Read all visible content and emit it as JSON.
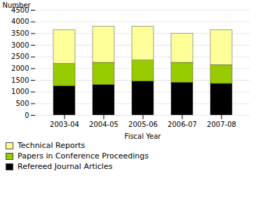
{
  "chart_data": {
    "type": "bar",
    "stacked": true,
    "categories": [
      "2003-04",
      "2004-05",
      "2005-06",
      "2006-07",
      "2007-08"
    ],
    "series": [
      {
        "name": "Refereed Journal Articles",
        "color": "#000000",
        "values": [
          1250,
          1300,
          1450,
          1400,
          1350
        ]
      },
      {
        "name": "Papers in Conference Proceedings",
        "color": "#99cc00",
        "values": [
          950,
          950,
          900,
          850,
          800
        ]
      },
      {
        "name": "Technical Reports",
        "color": "#ffff99",
        "values": [
          1450,
          1550,
          1450,
          1250,
          1500
        ]
      }
    ],
    "xlabel": "Fiscal Year",
    "ylabel": "Number",
    "ylim": [
      0,
      4500
    ],
    "yticks": [
      0,
      500,
      1000,
      1500,
      2000,
      2500,
      3000,
      3500,
      4000,
      4500
    ],
    "grid": true,
    "legend": "bottom"
  }
}
